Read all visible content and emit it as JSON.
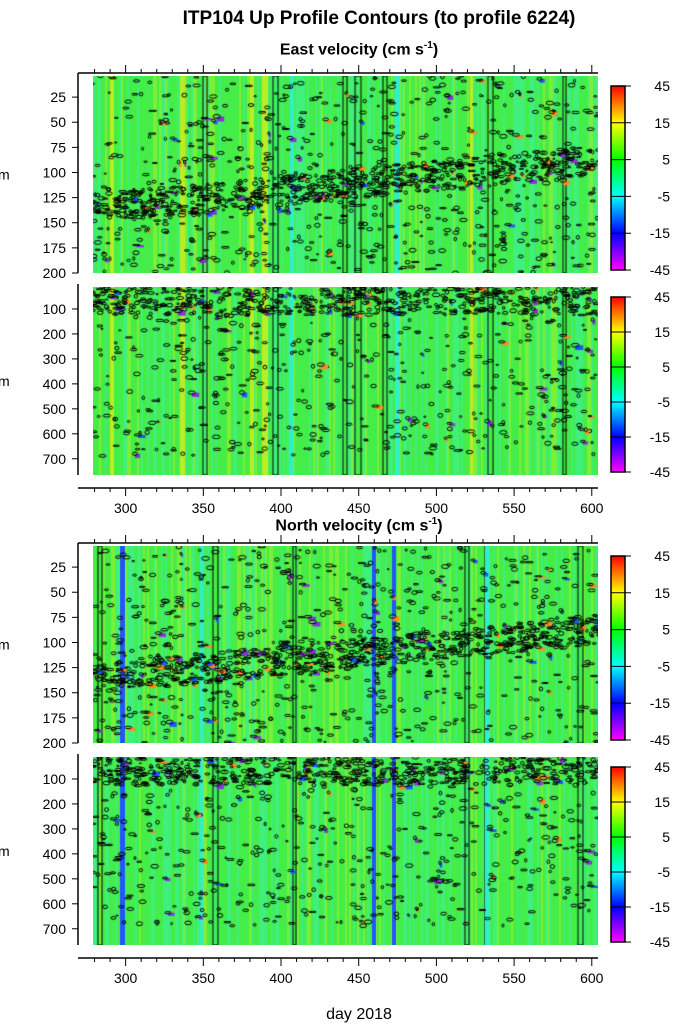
{
  "title": "ITP104 Up Profile Contours (to profile 6224)",
  "xlabel": "day 2018",
  "chart_data": [
    {
      "type": "heatmap",
      "title": "East velocity (cm s-1)",
      "title_base": "East velocity (cm s",
      "title_sup": "-1",
      "title_end": ")",
      "ylabel": "m",
      "xlim": [
        279,
        604
      ],
      "ylim": [
        200,
        4
      ],
      "yticks": [
        25,
        50,
        75,
        100,
        125,
        150,
        175,
        200
      ],
      "colorbar": {
        "ticks": [
          45,
          15,
          5,
          -5,
          -15,
          -45
        ],
        "colors": [
          "#ff0000",
          "#ffff00",
          "#00ff00",
          "#00ffff",
          "#0000ff",
          "#ff00ff"
        ]
      }
    },
    {
      "type": "heatmap",
      "ylabel": "m",
      "xlim": [
        279,
        604
      ],
      "ylim": [
        765,
        12
      ],
      "yticks": [
        100,
        200,
        300,
        400,
        500,
        600,
        700
      ],
      "xticks": [
        300,
        350,
        400,
        450,
        500,
        550,
        600
      ],
      "colorbar": {
        "ticks": [
          45,
          15,
          5,
          -5,
          -15,
          -45
        ],
        "colors": [
          "#ff0000",
          "#ffff00",
          "#00ff00",
          "#00ffff",
          "#0000ff",
          "#ff00ff"
        ]
      }
    },
    {
      "type": "heatmap",
      "title": "North velocity (cm s-1)",
      "title_base": "North velocity (cm s",
      "title_sup": "-1",
      "title_end": ")",
      "ylabel": "m",
      "xlim": [
        279,
        604
      ],
      "ylim": [
        200,
        4
      ],
      "yticks": [
        25,
        50,
        75,
        100,
        125,
        150,
        175,
        200
      ],
      "colorbar": {
        "ticks": [
          45,
          15,
          5,
          -5,
          -15,
          -45
        ],
        "colors": [
          "#ff0000",
          "#ffff00",
          "#00ff00",
          "#00ffff",
          "#0000ff",
          "#ff00ff"
        ]
      }
    },
    {
      "type": "heatmap",
      "ylabel": "m",
      "xlim": [
        279,
        604
      ],
      "ylim": [
        765,
        12
      ],
      "yticks": [
        100,
        200,
        300,
        400,
        500,
        600,
        700
      ],
      "xticks": [
        300,
        350,
        400,
        450,
        500,
        550,
        600
      ],
      "colorbar": {
        "ticks": [
          45,
          15,
          5,
          -5,
          -15,
          -45
        ],
        "colors": [
          "#ff0000",
          "#ffff00",
          "#00ff00",
          "#00ffff",
          "#0000ff",
          "#ff00ff"
        ]
      }
    }
  ]
}
